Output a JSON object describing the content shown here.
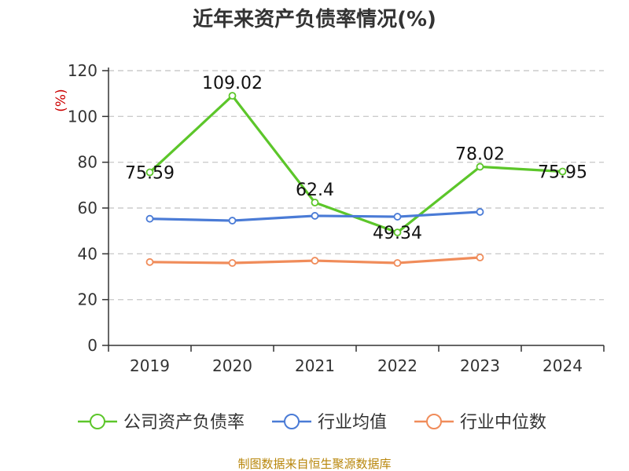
{
  "chart_data": {
    "type": "line",
    "title": "近年来资产负债率情况(%)",
    "ylabel": "(%)",
    "xlabel": "",
    "categories": [
      "2019",
      "2020",
      "2021",
      "2022",
      "2023",
      "2024"
    ],
    "ylim": [
      0,
      120
    ],
    "yticks": [
      0,
      20,
      40,
      60,
      80,
      100,
      120
    ],
    "grid": true,
    "legend_position": "bottom",
    "series": [
      {
        "name": "公司资产负债率",
        "color": "#5cc62a",
        "values": [
          75.59,
          109.02,
          62.4,
          49.34,
          78.02,
          75.95
        ],
        "labels": [
          "75.59",
          "109.02",
          "62.4",
          "49.34",
          "78.02",
          "75.95"
        ]
      },
      {
        "name": "行业均值",
        "color": "#4a7bd6",
        "values": [
          55.3,
          54.5,
          56.6,
          56.2,
          58.3,
          null
        ]
      },
      {
        "name": "行业中位数",
        "color": "#f08c5a",
        "values": [
          36.4,
          36.0,
          37.0,
          36.0,
          38.4,
          null
        ]
      }
    ]
  },
  "source_note": "制图数据来自恒生聚源数据库"
}
